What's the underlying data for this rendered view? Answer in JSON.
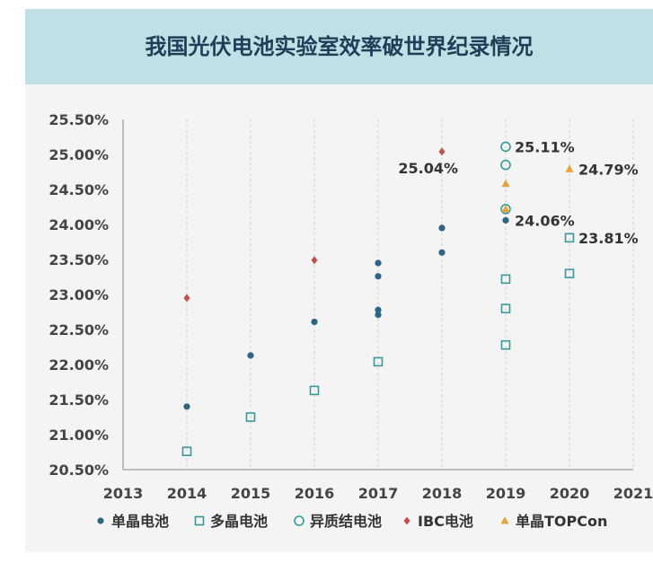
{
  "chart_data": {
    "type": "scatter",
    "title": "我国光伏电池实验室效率破世界纪录情况",
    "xlabel": "",
    "ylabel": "",
    "xlim": [
      2013,
      2021
    ],
    "ylim": [
      20.5,
      25.5
    ],
    "x_ticks": [
      "2013",
      "2014",
      "2015",
      "2016",
      "2017",
      "2018",
      "2019",
      "2020",
      "2021"
    ],
    "y_ticks": [
      "20.50%",
      "21.00%",
      "21.50%",
      "22.00%",
      "22.50%",
      "23.00%",
      "23.50%",
      "24.00%",
      "24.50%",
      "25.00%",
      "25.50%"
    ],
    "grid": "vertical",
    "legend_position": "bottom",
    "series": [
      {
        "name": "单晶电池",
        "marker": "circle",
        "color": "#2e6484",
        "points": [
          [
            2014,
            21.4
          ],
          [
            2015,
            22.13
          ],
          [
            2016,
            22.61
          ],
          [
            2017,
            23.45
          ],
          [
            2017,
            23.26
          ],
          [
            2017,
            22.78
          ],
          [
            2017,
            22.71
          ],
          [
            2018,
            23.95
          ],
          [
            2018,
            23.6
          ],
          [
            2019,
            24.06
          ]
        ]
      },
      {
        "name": "多晶电池",
        "marker": "square",
        "color": "#3a9a9b",
        "points": [
          [
            2014,
            20.76
          ],
          [
            2015,
            21.25
          ],
          [
            2016,
            21.63
          ],
          [
            2017,
            22.04
          ],
          [
            2019,
            23.22
          ],
          [
            2019,
            22.8
          ],
          [
            2019,
            22.28
          ],
          [
            2020,
            23.81
          ],
          [
            2020,
            23.3
          ]
        ]
      },
      {
        "name": "异质结电池",
        "marker": "ring",
        "color": "#3a9a9b",
        "points": [
          [
            2019,
            25.11
          ],
          [
            2019,
            24.85
          ],
          [
            2019,
            24.22
          ]
        ]
      },
      {
        "name": "IBC电池",
        "marker": "diamond",
        "color": "#c0504d",
        "points": [
          [
            2014,
            22.95
          ],
          [
            2016,
            23.49
          ],
          [
            2018,
            25.04
          ]
        ]
      },
      {
        "name": "单晶TOPCon",
        "marker": "triangle",
        "color": "#e6a23c",
        "points": [
          [
            2019,
            24.58
          ],
          [
            2019,
            24.22
          ],
          [
            2020,
            24.79
          ]
        ]
      }
    ],
    "annotations": [
      {
        "text": "25.04%",
        "x": 2018,
        "y": 25.04,
        "anchor": "below-left"
      },
      {
        "text": "25.11%",
        "x": 2019,
        "y": 25.11,
        "anchor": "right"
      },
      {
        "text": "24.06%",
        "x": 2019,
        "y": 24.06,
        "anchor": "right"
      },
      {
        "text": "24.79%",
        "x": 2020,
        "y": 24.79,
        "anchor": "right"
      },
      {
        "text": "23.81%",
        "x": 2020,
        "y": 23.81,
        "anchor": "right"
      }
    ]
  }
}
